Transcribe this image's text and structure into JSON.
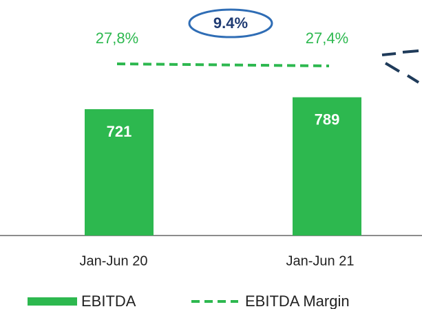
{
  "chart_data": {
    "type": "bar",
    "categories": [
      "Jan-Jun 20",
      "Jan-Jun 21"
    ],
    "series": [
      {
        "name": "EBITDA",
        "type": "bar",
        "color": "#2db84f",
        "values": [
          721,
          789
        ]
      },
      {
        "name": "EBITDA Margin",
        "type": "line",
        "color": "#2db84f",
        "axis": "y2",
        "values": [
          27.8,
          27.4
        ],
        "value_labels": [
          "27,8%",
          "27,4%"
        ]
      }
    ],
    "annotation": "9.4%"
  }
}
